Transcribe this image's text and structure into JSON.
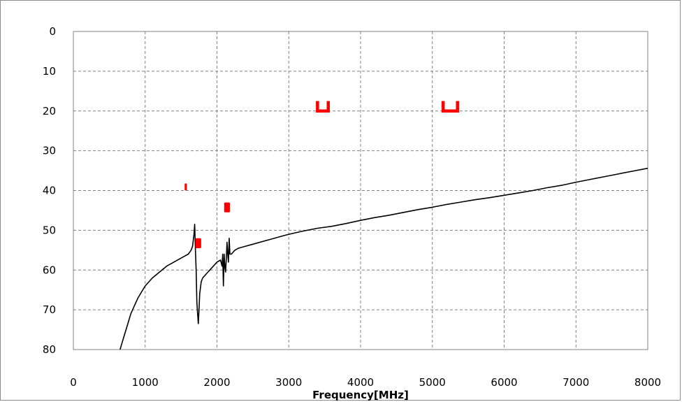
{
  "chart_data": {
    "type": "line",
    "title": "",
    "xlabel": "Frequency[MHz]",
    "ylabel": "",
    "xlim": [
      0,
      8000
    ],
    "ylim": [
      80,
      0
    ],
    "y_inverted": true,
    "grid": true,
    "grid_style": "dashed",
    "x_ticks": [
      0,
      1000,
      2000,
      3000,
      4000,
      5000,
      6000,
      7000,
      8000
    ],
    "y_ticks": [
      0,
      10,
      20,
      30,
      40,
      50,
      60,
      70,
      80
    ],
    "series": [
      {
        "color": "#000000",
        "x": [
          650,
          700,
          750,
          800,
          850,
          900,
          950,
          1000,
          1100,
          1200,
          1300,
          1400,
          1500,
          1550,
          1600,
          1620,
          1640,
          1660,
          1680,
          1690,
          1700,
          1710,
          1720,
          1730,
          1740,
          1750,
          1760,
          1780,
          1800,
          1850,
          1900,
          1950,
          2000,
          2050,
          2070,
          2080,
          2090,
          2100,
          2110,
          2120,
          2130,
          2140,
          2150,
          2160,
          2170,
          2180,
          2200,
          2250,
          2300,
          2400,
          2500,
          2700,
          2900,
          3000,
          3200,
          3400,
          3600,
          3800,
          4000,
          4200,
          4400,
          4600,
          4800,
          5000,
          5200,
          5400,
          5600,
          5800,
          6000,
          6200,
          6400,
          6600,
          6800,
          7000,
          7200,
          7400,
          7600,
          7800,
          8000
        ],
        "y": [
          80,
          77,
          74,
          71,
          69,
          67,
          65.5,
          64,
          62,
          60.5,
          59,
          58,
          57,
          56.5,
          56,
          55.5,
          55,
          54,
          51,
          48.5,
          55,
          60,
          68,
          71,
          73.5,
          70,
          66,
          63,
          62,
          61,
          60,
          59,
          58,
          57.5,
          59,
          56,
          64,
          56,
          59,
          60.5,
          57,
          53,
          56,
          58,
          52,
          56,
          56,
          55,
          54.5,
          54,
          53.5,
          52.5,
          51.5,
          51,
          50.2,
          49.5,
          49,
          48.3,
          47.5,
          46.8,
          46.2,
          45.5,
          44.8,
          44.2,
          43.5,
          42.9,
          42.3,
          41.8,
          41.2,
          40.6,
          40,
          39.3,
          38.7,
          37.9,
          37.2,
          36.5,
          35.8,
          35.1,
          34.4
        ]
      }
    ],
    "limit_marks": [
      {
        "shape": "bar",
        "x": [
          1550,
          1580
        ],
        "y": [
          38.2,
          40
        ],
        "color": "#ff0000"
      },
      {
        "shape": "bar",
        "x": [
          1700,
          1780
        ],
        "y": [
          52,
          54.5
        ],
        "color": "#ff0000"
      },
      {
        "shape": "bar",
        "x": [
          2100,
          2180
        ],
        "y": [
          43,
          45.5
        ],
        "color": "#ff0000"
      },
      {
        "shape": "bracket",
        "x": [
          3400,
          3550
        ],
        "y": [
          17.5,
          20
        ],
        "color": "#ff0000"
      },
      {
        "shape": "bracket",
        "x": [
          5150,
          5350
        ],
        "y": [
          17.5,
          20
        ],
        "color": "#ff0000"
      }
    ]
  }
}
